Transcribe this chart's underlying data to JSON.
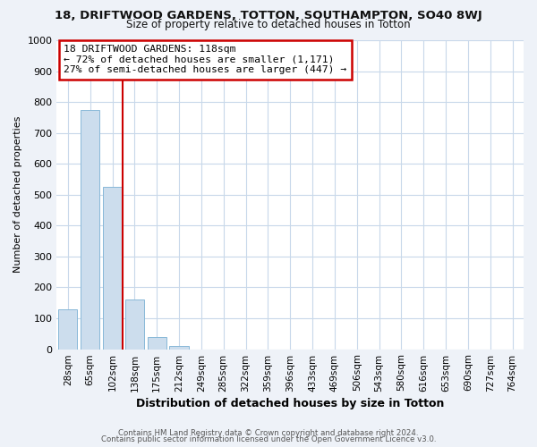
{
  "title": "18, DRIFTWOOD GARDENS, TOTTON, SOUTHAMPTON, SO40 8WJ",
  "subtitle": "Size of property relative to detached houses in Totton",
  "xlabel": "Distribution of detached houses by size in Totton",
  "ylabel": "Number of detached properties",
  "bar_labels": [
    "28sqm",
    "65sqm",
    "102sqm",
    "138sqm",
    "175sqm",
    "212sqm",
    "249sqm",
    "285sqm",
    "322sqm",
    "359sqm",
    "396sqm",
    "433sqm",
    "469sqm",
    "506sqm",
    "543sqm",
    "580sqm",
    "616sqm",
    "653sqm",
    "690sqm",
    "727sqm",
    "764sqm"
  ],
  "bar_values": [
    130,
    775,
    525,
    160,
    40,
    10,
    0,
    0,
    0,
    0,
    0,
    0,
    0,
    0,
    0,
    0,
    0,
    0,
    0,
    0,
    0
  ],
  "bar_color": "#ccdded",
  "bar_edge_color": "#88b8d8",
  "vline_color": "#cc0000",
  "ylim_max": 1000,
  "yticks": [
    0,
    100,
    200,
    300,
    400,
    500,
    600,
    700,
    800,
    900,
    1000
  ],
  "annotation_title": "18 DRIFTWOOD GARDENS: 118sqm",
  "annotation_line1": "← 72% of detached houses are smaller (1,171)",
  "annotation_line2": "27% of semi-detached houses are larger (447) →",
  "annotation_box_facecolor": "#ffffff",
  "annotation_box_edgecolor": "#cc0000",
  "footer_line1": "Contains HM Land Registry data © Crown copyright and database right 2024.",
  "footer_line2": "Contains public sector information licensed under the Open Government Licence v3.0.",
  "grid_color": "#c8d8ea",
  "plot_bg_color": "#ffffff",
  "fig_bg_color": "#eef2f8"
}
